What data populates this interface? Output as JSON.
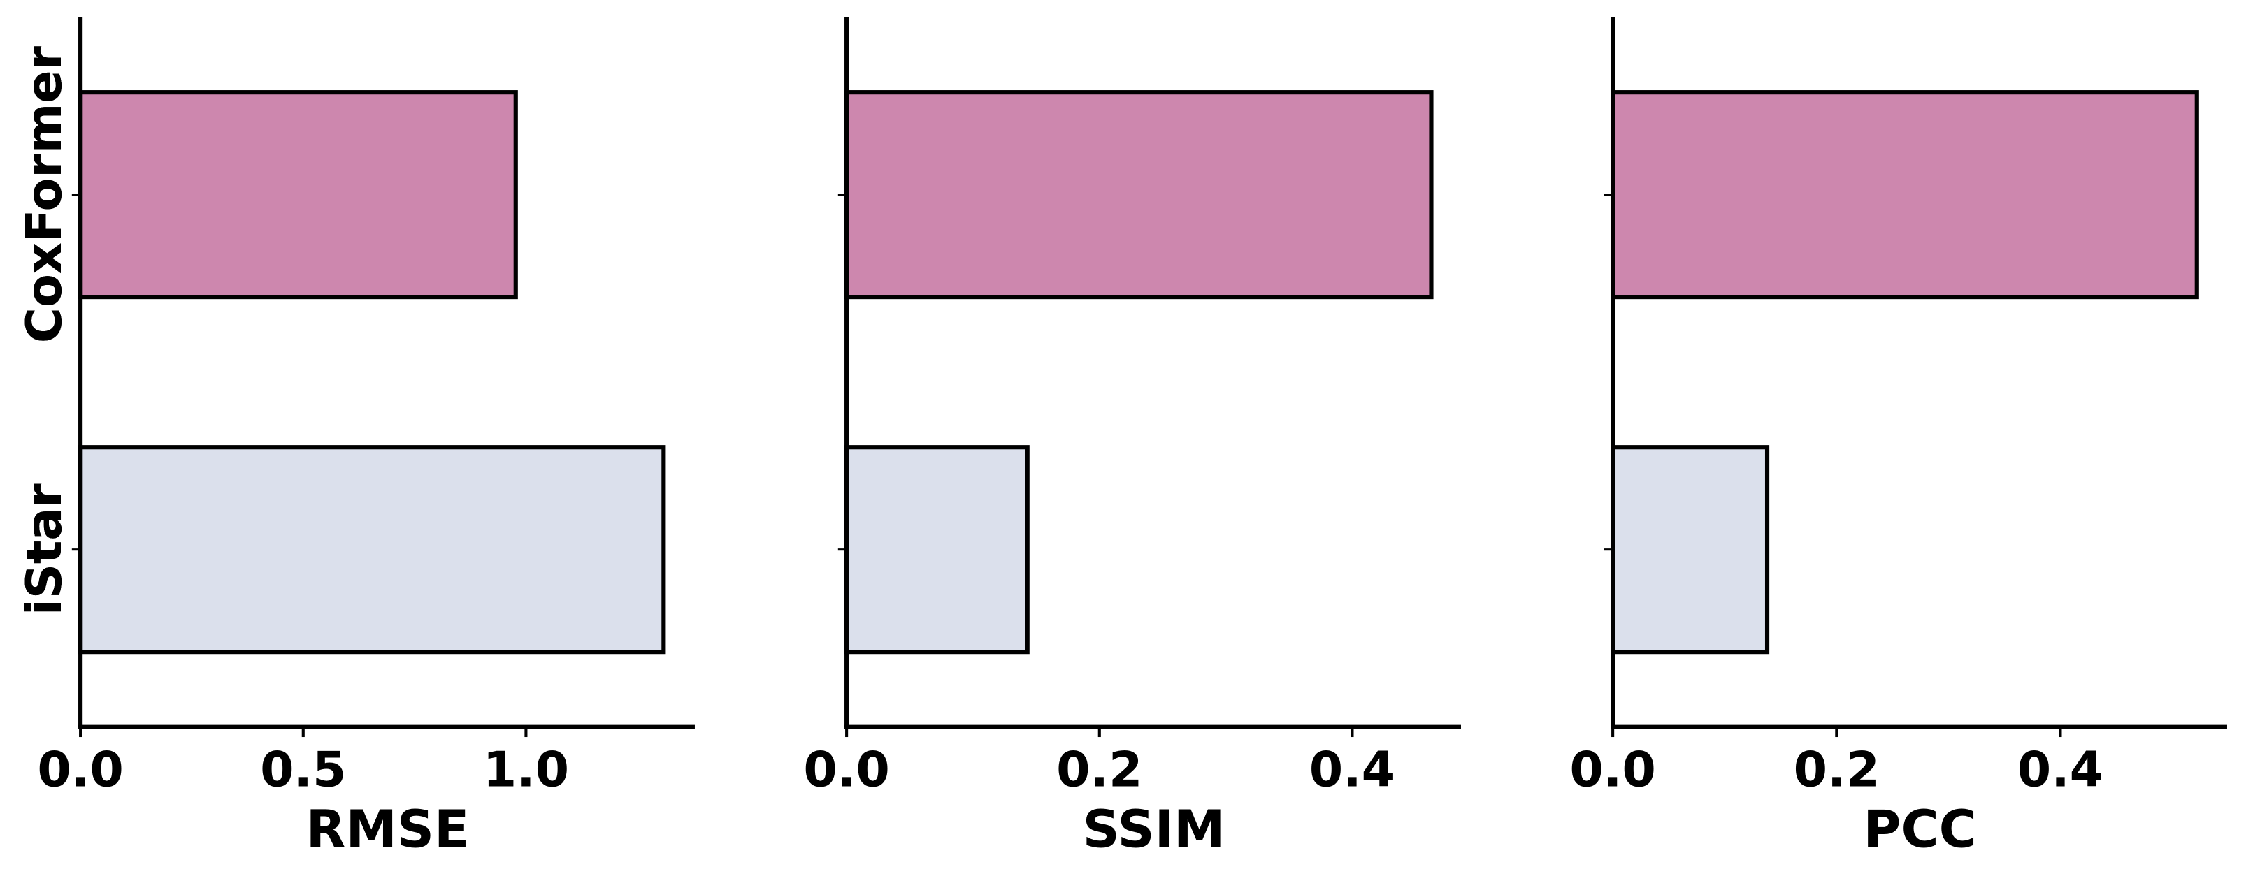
{
  "chart_data": [
    {
      "type": "barh",
      "xlabel": "RMSE",
      "categories": [
        "CoxFormer",
        "iStar"
      ],
      "values": [
        0.977,
        1.309
      ],
      "colors": [
        "#cd87ae",
        "#dbe0ec"
      ],
      "xlim": [
        0,
        1.379
      ],
      "xticks": [
        {
          "value": 0,
          "label": "0.0"
        },
        0.5,
        {
          "value": 1,
          "label": "1.0"
        }
      ]
    },
    {
      "type": "barh",
      "xlabel": "SSIM",
      "categories": [
        "CoxFormer",
        "iStar"
      ],
      "values": [
        0.4625,
        0.143
      ],
      "colors": [
        "#cd87ae",
        "#dbe0ec"
      ],
      "xlim": [
        0,
        0.486
      ],
      "xticks": [
        {
          "value": 0,
          "label": "0.0"
        },
        0.2,
        0.4
      ]
    },
    {
      "type": "barh",
      "xlabel": "PCC",
      "categories": [
        "CoxFormer",
        "iStar"
      ],
      "values": [
        0.522,
        0.138
      ],
      "colors": [
        "#cd87ae",
        "#dbe0ec"
      ],
      "xlim": [
        0,
        0.549
      ],
      "xticks": [
        {
          "value": 0,
          "label": "0.0"
        },
        0.2,
        0.4
      ]
    }
  ]
}
